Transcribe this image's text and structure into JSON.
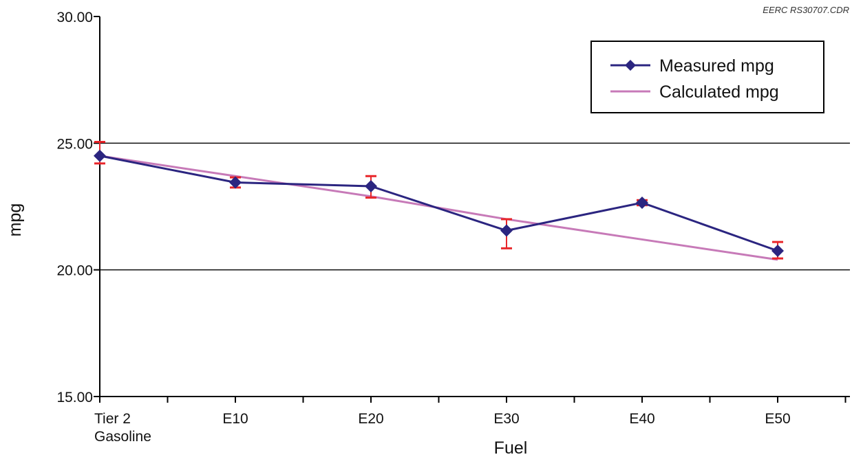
{
  "chart_data": {
    "type": "line",
    "credit": "EERC RS30707.CDR",
    "xlabel": "Fuel",
    "ylabel": "mpg",
    "ylim": [
      15,
      30
    ],
    "yticks": [
      "15.00",
      "20.00",
      "25.00",
      "30.00"
    ],
    "categories": [
      [
        "Tier 2",
        "Gasoline"
      ],
      [
        "E10"
      ],
      [
        "E20"
      ],
      [
        "E30"
      ],
      [
        "E40"
      ],
      [
        "E50"
      ]
    ],
    "grid": "horizontal at 20 and 25",
    "legend_position": "top-right",
    "series": [
      {
        "name": "Measured mpg",
        "color": "#2b2580",
        "marker": "diamond",
        "values": [
          24.5,
          23.45,
          23.3,
          21.55,
          22.65,
          20.75
        ],
        "error_low": [
          24.2,
          23.25,
          22.85,
          20.85,
          22.55,
          20.45
        ],
        "error_high": [
          25.05,
          23.65,
          23.7,
          22.0,
          22.75,
          21.1
        ],
        "error_color": "#e8262a"
      },
      {
        "name": "Calculated mpg",
        "color": "#c77ab8",
        "marker": "none",
        "values": [
          24.5,
          23.7,
          22.9,
          22.0,
          21.2,
          20.4
        ]
      }
    ]
  }
}
